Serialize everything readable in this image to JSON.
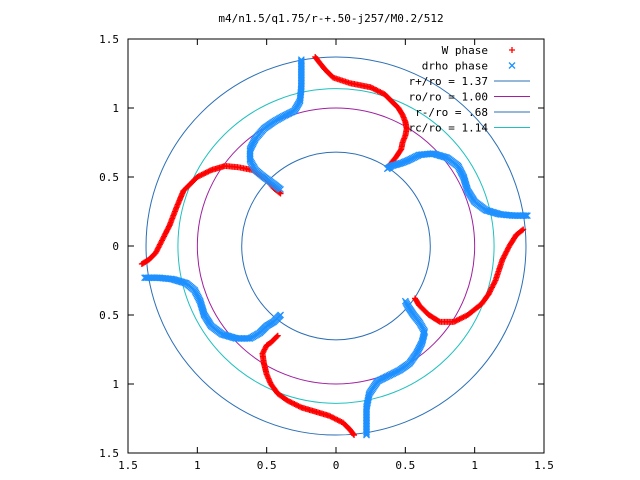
{
  "chart_data": {
    "type": "scatter",
    "title": "m4/n1.5/q1.75/r-+.50-j257/M0.2/512",
    "xlim": [
      -1.5,
      1.5
    ],
    "ylim": [
      -1.5,
      1.5
    ],
    "x_ticks": [
      {
        "value": -1.5,
        "label": "1.5"
      },
      {
        "value": -1.0,
        "label": "1"
      },
      {
        "value": -0.5,
        "label": "0.5"
      },
      {
        "value": 0,
        "label": "0"
      },
      {
        "value": 0.5,
        "label": "0.5"
      },
      {
        "value": 1.0,
        "label": "1"
      },
      {
        "value": 1.5,
        "label": "1.5"
      }
    ],
    "y_ticks": [
      {
        "value": 1.5,
        "label": "1.5"
      },
      {
        "value": 1.0,
        "label": "1"
      },
      {
        "value": 0.5,
        "label": "0.5"
      },
      {
        "value": 0,
        "label": "0"
      },
      {
        "value": -0.5,
        "label": "0.5"
      },
      {
        "value": -1.0,
        "label": "1"
      },
      {
        "value": -1.5,
        "label": "1.5"
      }
    ],
    "grid": false,
    "legend_position": "top-right",
    "circles": [
      {
        "name": "r+/ro = 1.37",
        "radius": 1.37,
        "color": "#2b6fb6"
      },
      {
        "name": "ro/ro = 1.00",
        "radius": 1.0,
        "color": "#a020a0"
      },
      {
        "name": "r-/ro = .68",
        "radius": 0.68,
        "color": "#2b6fb6"
      },
      {
        "name": "rc/ro = 1.14",
        "radius": 1.14,
        "color": "#20c0c0"
      }
    ],
    "series": [
      {
        "name": "W phase",
        "marker": "plus",
        "color": "#ff0000",
        "arms": [
          [
            [
              -0.15,
              1.37
            ],
            [
              -0.12,
              1.33
            ],
            [
              -0.08,
              1.28
            ],
            [
              -0.02,
              1.22
            ],
            [
              0.1,
              1.18
            ],
            [
              0.25,
              1.15
            ],
            [
              0.35,
              1.1
            ],
            [
              0.4,
              1.05
            ],
            [
              0.45,
              1.0
            ],
            [
              0.48,
              0.95
            ],
            [
              0.5,
              0.9
            ],
            [
              0.51,
              0.85
            ],
            [
              0.5,
              0.8
            ],
            [
              0.48,
              0.75
            ],
            [
              0.47,
              0.7
            ],
            [
              0.43,
              0.64
            ],
            [
              0.38,
              0.58
            ]
          ],
          [
            [
              -1.4,
              -0.13
            ],
            [
              -1.35,
              -0.1
            ],
            [
              -1.3,
              -0.05
            ],
            [
              -1.25,
              0.05
            ],
            [
              -1.2,
              0.15
            ],
            [
              -1.15,
              0.28
            ],
            [
              -1.1,
              0.4
            ],
            [
              -1.0,
              0.5
            ],
            [
              -0.9,
              0.55
            ],
            [
              -0.8,
              0.58
            ],
            [
              -0.7,
              0.57
            ],
            [
              -0.6,
              0.55
            ],
            [
              -0.5,
              0.48
            ],
            [
              -0.45,
              0.42
            ],
            [
              -0.4,
              0.38
            ]
          ],
          [
            [
              1.35,
              0.12
            ],
            [
              1.3,
              0.08
            ],
            [
              1.25,
              0.0
            ],
            [
              1.2,
              -0.1
            ],
            [
              1.15,
              -0.25
            ],
            [
              1.1,
              -0.35
            ],
            [
              1.05,
              -0.42
            ],
            [
              0.95,
              -0.5
            ],
            [
              0.85,
              -0.55
            ],
            [
              0.75,
              -0.55
            ],
            [
              0.67,
              -0.5
            ],
            [
              0.6,
              -0.43
            ],
            [
              0.57,
              -0.38
            ]
          ],
          [
            [
              0.13,
              -1.37
            ],
            [
              0.1,
              -1.33
            ],
            [
              0.05,
              -1.28
            ],
            [
              -0.05,
              -1.23
            ],
            [
              -0.15,
              -1.2
            ],
            [
              -0.25,
              -1.17
            ],
            [
              -0.35,
              -1.12
            ],
            [
              -0.42,
              -1.07
            ],
            [
              -0.47,
              -1.0
            ],
            [
              -0.5,
              -0.93
            ],
            [
              -0.52,
              -0.85
            ],
            [
              -0.53,
              -0.78
            ],
            [
              -0.5,
              -0.72
            ],
            [
              -0.47,
              -0.7
            ],
            [
              -0.42,
              -0.65
            ]
          ]
        ]
      },
      {
        "name": "drho phase",
        "marker": "cross",
        "color": "#1e90ff",
        "arms": [
          [
            [
              -0.25,
              1.35
            ],
            [
              -0.25,
              1.25
            ],
            [
              -0.25,
              1.15
            ],
            [
              -0.26,
              1.05
            ],
            [
              -0.3,
              0.98
            ],
            [
              -0.38,
              0.94
            ],
            [
              -0.45,
              0.9
            ],
            [
              -0.52,
              0.85
            ],
            [
              -0.58,
              0.78
            ],
            [
              -0.62,
              0.7
            ],
            [
              -0.62,
              0.62
            ],
            [
              -0.58,
              0.55
            ],
            [
              -0.52,
              0.5
            ],
            [
              -0.45,
              0.45
            ],
            [
              -0.4,
              0.41
            ]
          ],
          [
            [
              -1.38,
              -0.23
            ],
            [
              -1.28,
              -0.23
            ],
            [
              -1.18,
              -0.24
            ],
            [
              -1.08,
              -0.27
            ],
            [
              -1.02,
              -0.32
            ],
            [
              -0.98,
              -0.4
            ],
            [
              -0.95,
              -0.5
            ],
            [
              -0.9,
              -0.58
            ],
            [
              -0.82,
              -0.64
            ],
            [
              -0.72,
              -0.67
            ],
            [
              -0.62,
              -0.67
            ],
            [
              -0.55,
              -0.63
            ],
            [
              -0.5,
              -0.58
            ],
            [
              -0.45,
              -0.55
            ],
            [
              -0.4,
              -0.5
            ]
          ],
          [
            [
              1.38,
              0.22
            ],
            [
              1.28,
              0.22
            ],
            [
              1.18,
              0.23
            ],
            [
              1.08,
              0.26
            ],
            [
              1.0,
              0.32
            ],
            [
              0.95,
              0.4
            ],
            [
              0.92,
              0.5
            ],
            [
              0.88,
              0.58
            ],
            [
              0.8,
              0.64
            ],
            [
              0.7,
              0.67
            ],
            [
              0.6,
              0.66
            ],
            [
              0.52,
              0.62
            ],
            [
              0.47,
              0.6
            ],
            [
              0.4,
              0.58
            ],
            [
              0.37,
              0.56
            ]
          ],
          [
            [
              0.22,
              -1.37
            ],
            [
              0.22,
              -1.27
            ],
            [
              0.22,
              -1.17
            ],
            [
              0.24,
              -1.07
            ],
            [
              0.3,
              -0.98
            ],
            [
              0.38,
              -0.94
            ],
            [
              0.46,
              -0.9
            ],
            [
              0.53,
              -0.85
            ],
            [
              0.58,
              -0.78
            ],
            [
              0.62,
              -0.7
            ],
            [
              0.64,
              -0.62
            ],
            [
              0.6,
              -0.55
            ],
            [
              0.56,
              -0.5
            ],
            [
              0.52,
              -0.44
            ],
            [
              0.5,
              -0.4
            ]
          ]
        ]
      }
    ]
  }
}
